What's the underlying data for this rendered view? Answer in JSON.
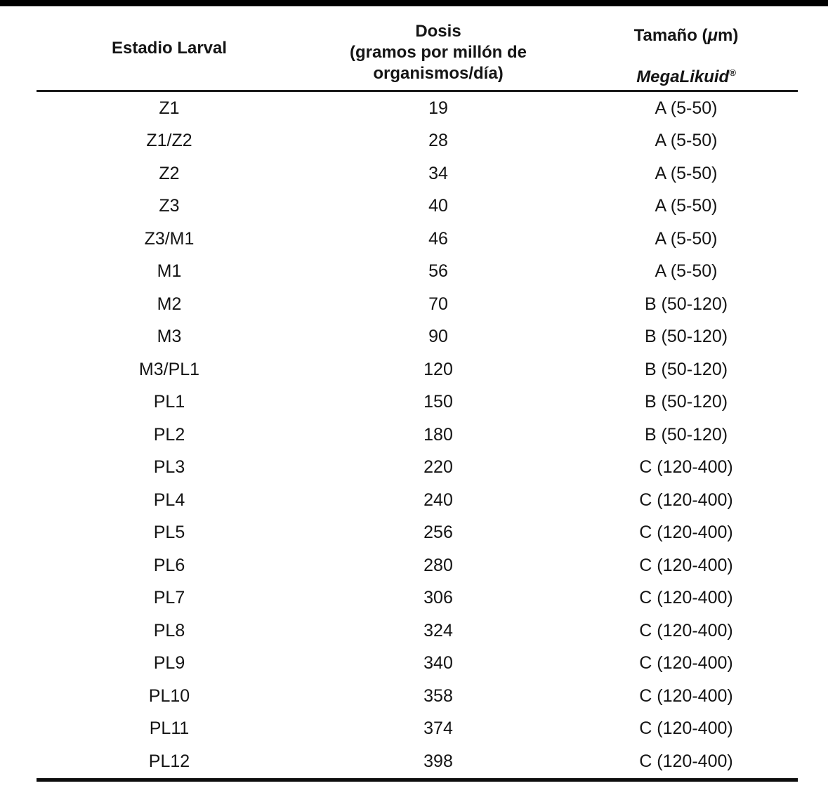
{
  "page": {
    "top_bar_color": "#000000",
    "background": "#ffffff",
    "text_color": "#151515"
  },
  "table": {
    "header": {
      "estadio_label": "Estadio Larval",
      "dosis_line1": "Dosis",
      "dosis_line2": "(gramos por millón de",
      "dosis_line3": "organismos/día)",
      "tamano_prefix": "Tamaño (",
      "tamano_mu": "μ",
      "tamano_suffix": "m)",
      "brand_name": "MegaLikuid",
      "brand_mark": "®"
    },
    "rows": [
      {
        "stage": "Z1",
        "dose": "19",
        "size": "A (5-50)"
      },
      {
        "stage": "Z1/Z2",
        "dose": "28",
        "size": "A (5-50)"
      },
      {
        "stage": "Z2",
        "dose": "34",
        "size": "A (5-50)"
      },
      {
        "stage": "Z3",
        "dose": "40",
        "size": "A (5-50)"
      },
      {
        "stage": "Z3/M1",
        "dose": "46",
        "size": "A (5-50)"
      },
      {
        "stage": "M1",
        "dose": "56",
        "size": "A (5-50)"
      },
      {
        "stage": "M2",
        "dose": "70",
        "size": "B (50-120)"
      },
      {
        "stage": "M3",
        "dose": "90",
        "size": "B (50-120)"
      },
      {
        "stage": "M3/PL1",
        "dose": "120",
        "size": "B (50-120)"
      },
      {
        "stage": "PL1",
        "dose": "150",
        "size": "B (50-120)"
      },
      {
        "stage": "PL2",
        "dose": "180",
        "size": "B (50-120)"
      },
      {
        "stage": "PL3",
        "dose": "220",
        "size": "C (120-400)"
      },
      {
        "stage": "PL4",
        "dose": "240",
        "size": "C (120-400)"
      },
      {
        "stage": "PL5",
        "dose": "256",
        "size": "C (120-400)"
      },
      {
        "stage": "PL6",
        "dose": "280",
        "size": "C (120-400)"
      },
      {
        "stage": "PL7",
        "dose": "306",
        "size": "C (120-400)"
      },
      {
        "stage": "PL8",
        "dose": "324",
        "size": "C (120-400)"
      },
      {
        "stage": "PL9",
        "dose": "340",
        "size": "C (120-400)"
      },
      {
        "stage": "PL10",
        "dose": "358",
        "size": "C (120-400)"
      },
      {
        "stage": "PL11",
        "dose": "374",
        "size": "C (120-400)"
      },
      {
        "stage": "PL12",
        "dose": "398",
        "size": "C (120-400)"
      }
    ]
  }
}
